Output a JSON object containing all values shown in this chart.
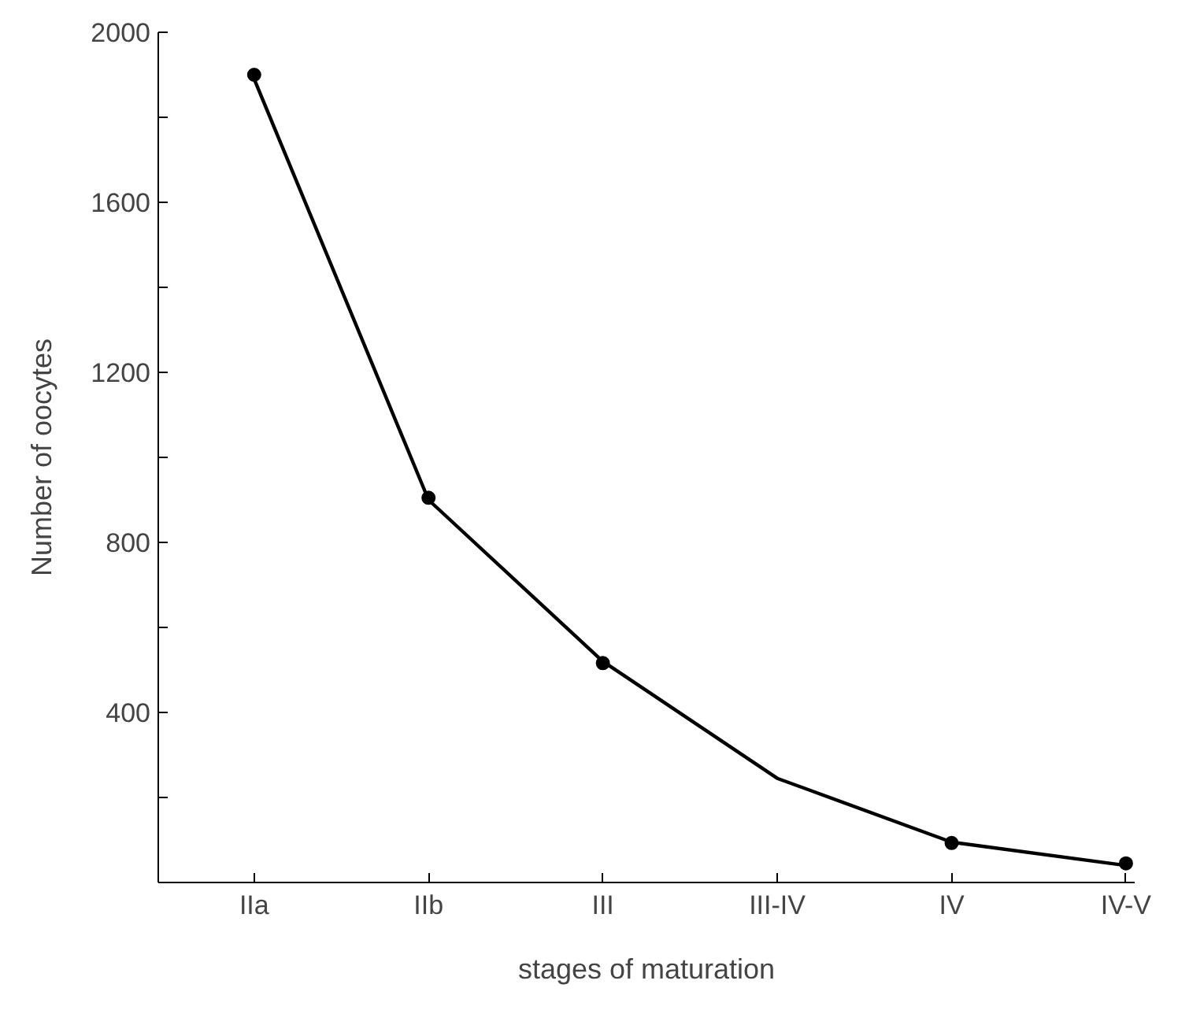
{
  "chart_data": {
    "type": "line",
    "xlabel": "stages of maturation",
    "ylabel": "Number of oocytes",
    "categories": [
      "IIa",
      "IIb",
      "III",
      "III-IV",
      "IV",
      "IV-V"
    ],
    "series": [
      {
        "color": "#000000",
        "values": [
          1890,
          900,
          520,
          245,
          95,
          40
        ],
        "marker": "none"
      },
      {
        "type": "scatter",
        "color": "#000000",
        "values": [
          1900,
          905,
          516,
          null,
          93,
          45
        ],
        "marker": "circle"
      }
    ],
    "ylim": [
      0,
      2000
    ],
    "yticks": [
      {
        "value": 200,
        "label": null
      },
      400,
      {
        "value": 600,
        "label": null
      },
      800,
      {
        "value": 1000,
        "label": null
      },
      1200,
      {
        "value": 1400,
        "label": null
      },
      1600,
      {
        "value": 1800,
        "label": null
      },
      2000
    ],
    "grid": false
  }
}
